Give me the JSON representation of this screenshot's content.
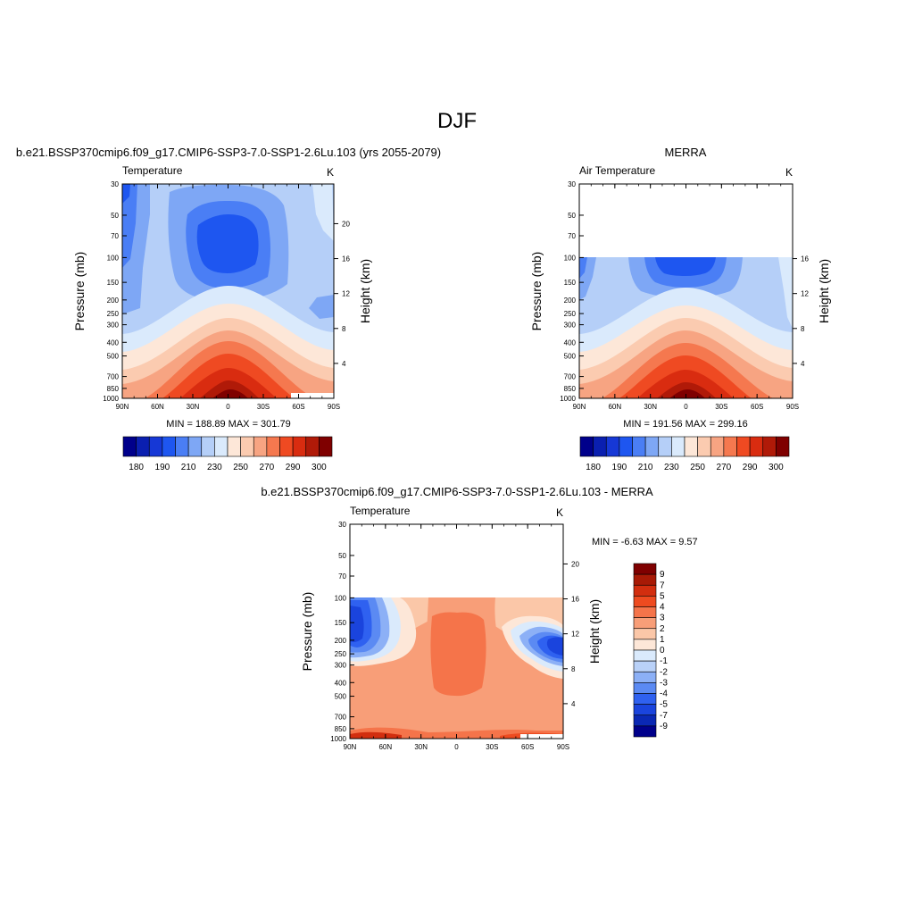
{
  "figure": {
    "title": "DJF"
  },
  "colors": {
    "abs_palette": [
      "#00008b",
      "#0a1fb0",
      "#1638d6",
      "#1e56f0",
      "#4a7ef5",
      "#7ea7f5",
      "#b5cff8",
      "#daeafc",
      "#fde7d8",
      "#fbcbb0",
      "#f7a482",
      "#f5784f",
      "#ef4a22",
      "#d92c10",
      "#b01a08",
      "#7f0000"
    ],
    "diff_palette": [
      "#00008b",
      "#0a28b4",
      "#1a44dd",
      "#2f61f0",
      "#5b8af3",
      "#8cb0f6",
      "#b9d1f8",
      "#daeafc",
      "#fde7d8",
      "#fbc7a8",
      "#f89e78",
      "#f5744a",
      "#ee4b20",
      "#d22e0f",
      "#a81a06",
      "#7f0000"
    ]
  },
  "panels": [
    {
      "id": "model",
      "top_title": "b.e21.BSSP370cmip6.f09_g17.CMIP6-SSP3-7.0-SSP1-2.6Lu.103 (yrs 2055-2079)",
      "left_label": "Temperature",
      "right_label": "K",
      "ylabel": "Pressure (mb)",
      "y2label": "Height (km)",
      "stats": "MIN = 188.89  MAX = 301.79"
    },
    {
      "id": "obs",
      "top_title": "MERRA",
      "left_label": "Air Temperature",
      "right_label": "K",
      "ylabel": "Pressure (mb)",
      "y2label": "Height (km)",
      "stats": "MIN = 191.56  MAX = 299.16"
    },
    {
      "id": "diff",
      "top_title": "b.e21.BSSP370cmip6.f09_g17.CMIP6-SSP3-7.0-SSP1-2.6Lu.103 - MERRA",
      "left_label": "Temperature",
      "right_label": "K",
      "ylabel": "Pressure (mb)",
      "y2label": "Height (km)",
      "stats": "MIN =  -6.63  MAX =   9.57"
    }
  ],
  "chart_data": [
    {
      "type": "heatmap",
      "x": [
        "90N",
        "60N",
        "30N",
        "0",
        "30S",
        "60S",
        "90S"
      ],
      "y_pressure_ticks": [
        "30",
        "50",
        "70",
        "100",
        "150",
        "200",
        "250",
        "300",
        "400",
        "500",
        "700",
        "850",
        "1000"
      ],
      "y2_height_ticks": [
        "20",
        "16",
        "12",
        "8",
        "4"
      ],
      "ylim": [
        1000,
        30
      ],
      "colorbar": {
        "orientation": "horizontal",
        "labels": [
          "180",
          "190",
          "210",
          "230",
          "250",
          "270",
          "290",
          "300"
        ]
      }
    },
    {
      "type": "heatmap",
      "x": [
        "90N",
        "60N",
        "30N",
        "0",
        "30S",
        "60S",
        "90S"
      ],
      "y_pressure_ticks": [
        "30",
        "50",
        "70",
        "100",
        "150",
        "200",
        "250",
        "300",
        "400",
        "500",
        "700",
        "850",
        "1000"
      ],
      "y2_height_ticks": [
        "16",
        "12",
        "8",
        "4"
      ],
      "ylim": [
        1000,
        30
      ],
      "data_top_pressure": 100,
      "colorbar": {
        "orientation": "horizontal",
        "labels": [
          "180",
          "190",
          "210",
          "230",
          "250",
          "270",
          "290",
          "300"
        ]
      }
    },
    {
      "type": "heatmap",
      "x": [
        "90N",
        "60N",
        "30N",
        "0",
        "30S",
        "60S",
        "90S"
      ],
      "y_pressure_ticks": [
        "30",
        "50",
        "70",
        "100",
        "150",
        "200",
        "250",
        "300",
        "400",
        "500",
        "700",
        "850",
        "1000"
      ],
      "y2_height_ticks": [
        "20",
        "16",
        "12",
        "8",
        "4"
      ],
      "ylim": [
        1000,
        30
      ],
      "data_top_pressure": 100,
      "colorbar": {
        "orientation": "vertical",
        "labels": [
          "9",
          "7",
          "5",
          "4",
          "3",
          "2",
          "1",
          "0",
          "-1",
          "-2",
          "-3",
          "-4",
          "-5",
          "-7",
          "-9"
        ]
      }
    }
  ]
}
